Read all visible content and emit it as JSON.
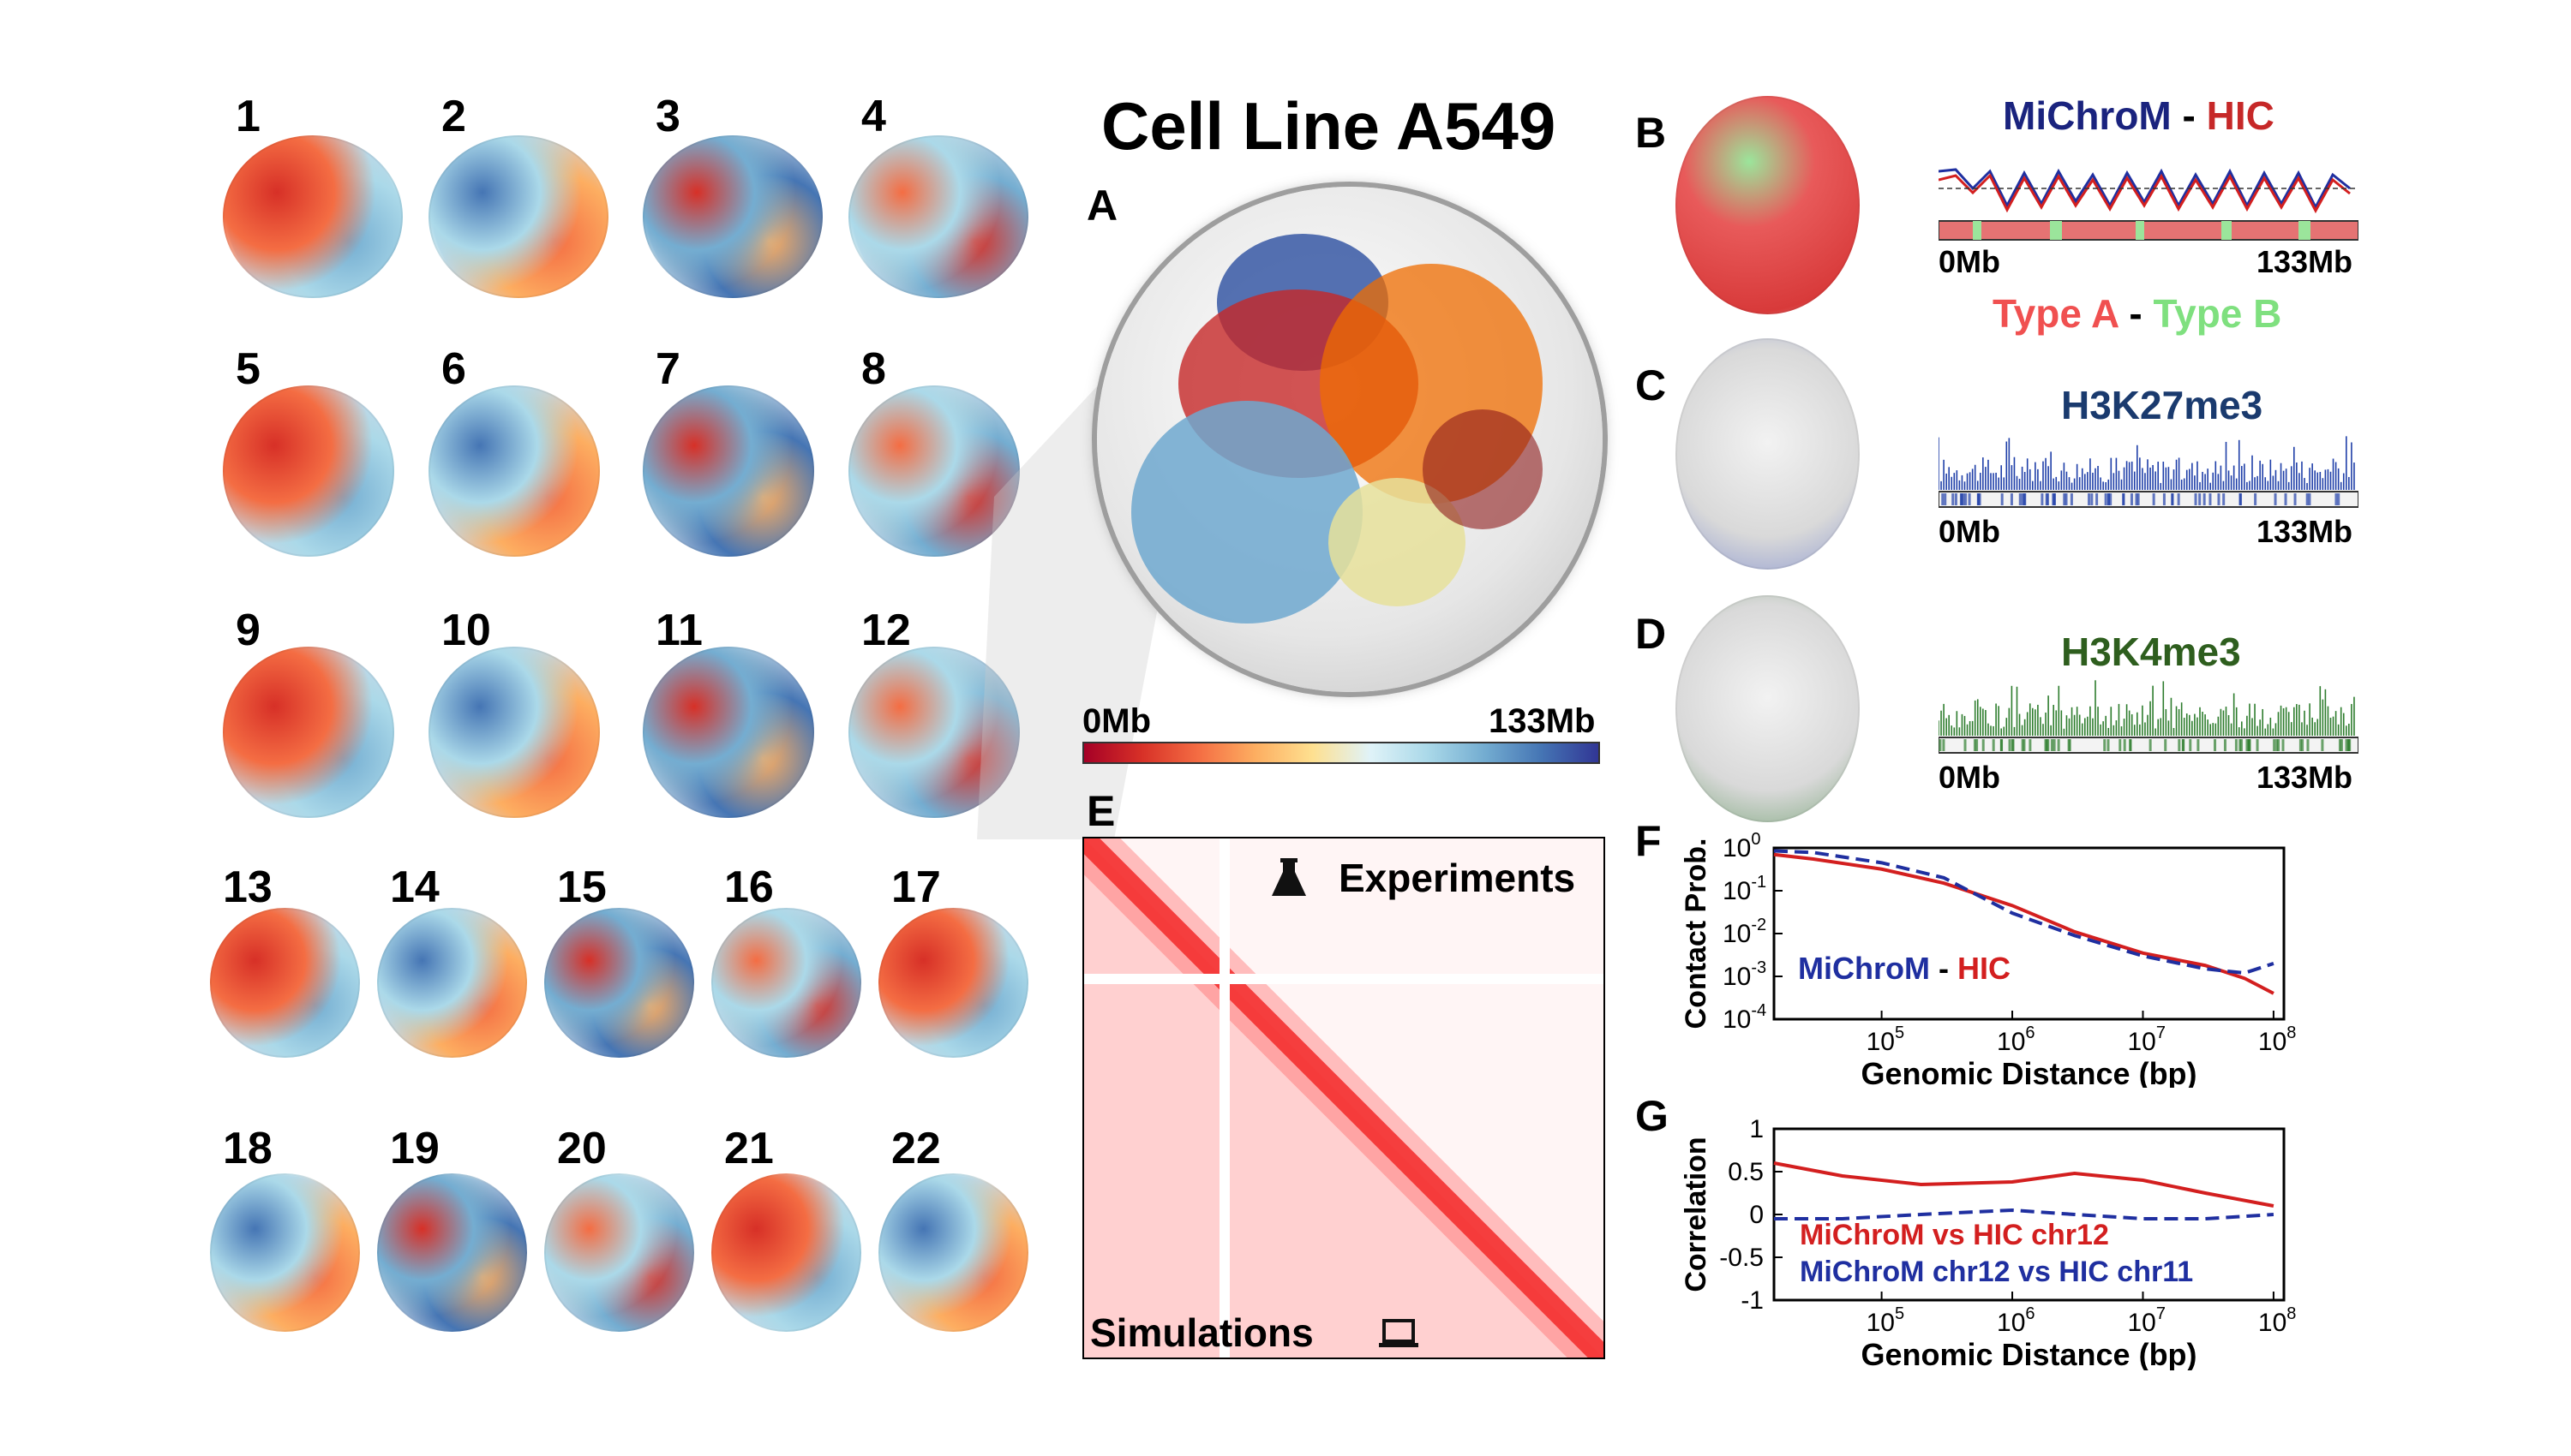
{
  "title": "Cell Line A549",
  "chromosome_labels": [
    "1",
    "2",
    "3",
    "4",
    "5",
    "6",
    "7",
    "8",
    "9",
    "10",
    "11",
    "12",
    "13",
    "14",
    "15",
    "16",
    "17",
    "18",
    "19",
    "20",
    "21",
    "22"
  ],
  "panels": {
    "A": {
      "letter": "A",
      "colorbar_start": "0Mb",
      "colorbar_end": "133Mb"
    },
    "B": {
      "letter": "B",
      "title_left": "MiChroM",
      "title_sep": "-",
      "title_right": "HIC",
      "axis_start": "0Mb",
      "axis_end": "133Mb",
      "legend_left": "Type A",
      "legend_sep": "-",
      "legend_right": "Type B"
    },
    "C": {
      "letter": "C",
      "title": "H3K27me3",
      "axis_start": "0Mb",
      "axis_end": "133Mb"
    },
    "D": {
      "letter": "D",
      "title": "H3K4me3",
      "axis_start": "0Mb",
      "axis_end": "133Mb"
    },
    "E": {
      "letter": "E",
      "top_label": "Experiments",
      "bottom_label": "Simulations"
    },
    "F": {
      "letter": "F",
      "ylabel": "Contact Prob.",
      "xlabel": "Genomic Distance (bp)",
      "legend_left": "MiChroM",
      "legend_sep": "-",
      "legend_right": "HIC"
    },
    "G": {
      "letter": "G",
      "ylabel": "Correlation",
      "xlabel": "Genomic Distance (bp)",
      "legend_1": "MiChroM vs HIC chr12",
      "legend_2": "MiChroM chr12 vs HIC chr11"
    }
  },
  "colors": {
    "red": "#d31f1f",
    "blue": "#1f2fa0",
    "green_typeB": "#7fe07f",
    "typeA": "#f05050",
    "h3k27": "#1f3fa8",
    "h3k4": "#2e7d2e",
    "title_blue": "#1a237e",
    "title_red": "#c62828",
    "h3k27_title": "#1a3a6e",
    "h3k4_title": "#2e5e1e"
  },
  "chart_data": [
    {
      "type": "line",
      "panel": "F",
      "xlabel": "Genomic Distance (bp)",
      "ylabel": "Contact Prob.",
      "xscale": "log",
      "yscale": "log",
      "xlim": [
        15000,
        120000000
      ],
      "ylim": [
        0.0001,
        1
      ],
      "xticks": [
        "10^5",
        "10^6",
        "10^7",
        "10^8"
      ],
      "yticks": [
        "10^0",
        "10^-1",
        "10^-2",
        "10^-3",
        "10^-4"
      ],
      "series": [
        {
          "name": "HIC",
          "color": "#d31f1f",
          "style": "solid",
          "x": [
            15000,
            30000,
            100000,
            300000,
            1000000,
            3000000,
            10000000,
            30000000,
            60000000,
            100000000
          ],
          "y": [
            0.7,
            0.55,
            0.32,
            0.15,
            0.045,
            0.011,
            0.0035,
            0.0018,
            0.0009,
            0.0004
          ]
        },
        {
          "name": "MiChroM",
          "color": "#1f2fa0",
          "style": "dashed",
          "x": [
            15000,
            30000,
            100000,
            300000,
            1000000,
            3000000,
            10000000,
            30000000,
            60000000,
            100000000
          ],
          "y": [
            0.85,
            0.78,
            0.45,
            0.2,
            0.03,
            0.009,
            0.003,
            0.0015,
            0.0012,
            0.002
          ]
        }
      ]
    },
    {
      "type": "line",
      "panel": "G",
      "xlabel": "Genomic Distance (bp)",
      "ylabel": "Correlation",
      "xscale": "log",
      "xlim": [
        15000,
        120000000
      ],
      "ylim": [
        -1,
        1
      ],
      "xticks": [
        "10^5",
        "10^6",
        "10^7",
        "10^8"
      ],
      "yticks": [
        "1",
        "0.5",
        "0",
        "-0.5",
        "-1"
      ],
      "series": [
        {
          "name": "MiChroM vs HIC chr12",
          "color": "#d31f1f",
          "style": "solid",
          "x": [
            15000,
            50000,
            200000,
            1000000,
            3000000,
            10000000,
            30000000,
            100000000
          ],
          "y": [
            0.6,
            0.45,
            0.35,
            0.38,
            0.48,
            0.4,
            0.25,
            0.1
          ]
        },
        {
          "name": "MiChroM chr12 vs HIC chr11",
          "color": "#1f2fa0",
          "style": "dashed",
          "x": [
            15000,
            50000,
            200000,
            1000000,
            3000000,
            10000000,
            30000000,
            100000000
          ],
          "y": [
            -0.05,
            -0.05,
            0.0,
            0.05,
            0.0,
            -0.05,
            -0.05,
            0.0
          ]
        }
      ]
    }
  ]
}
